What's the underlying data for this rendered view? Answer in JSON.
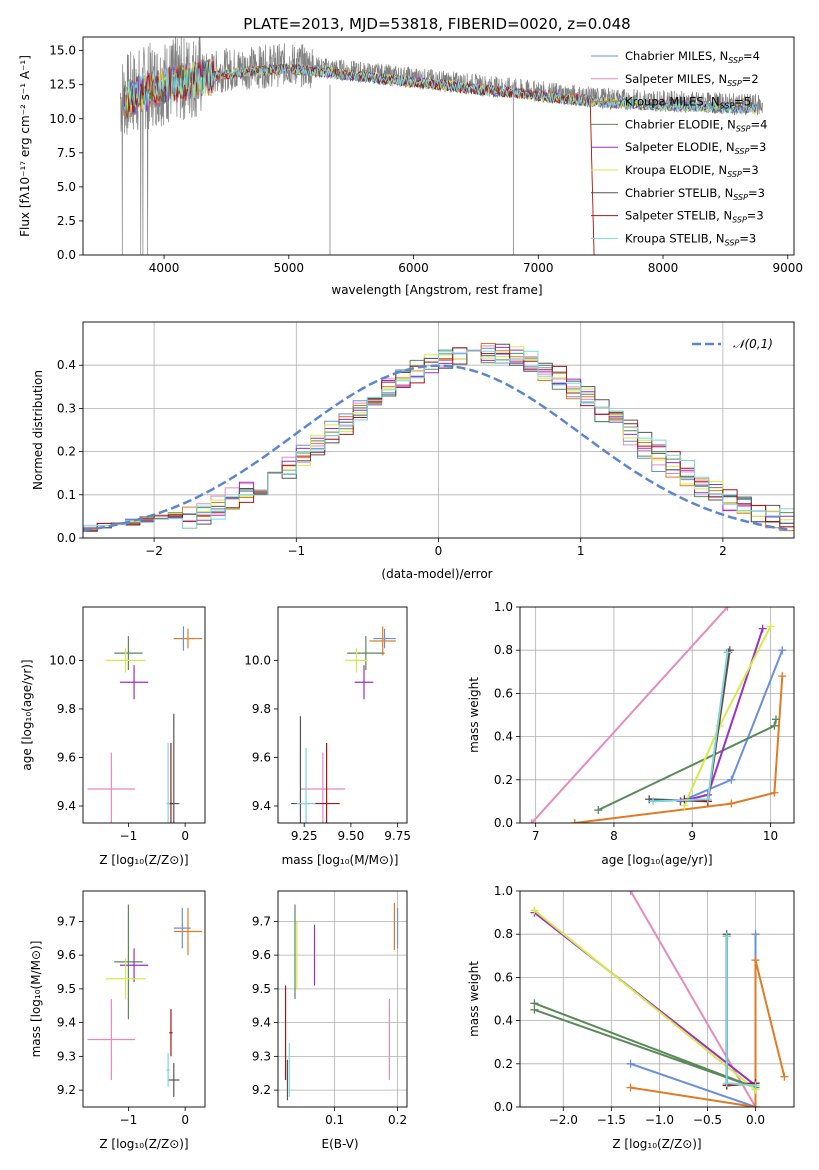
{
  "figure_title": "PLATE=2013, MJD=53818, FIBERID=0020, z=0.048",
  "colors": {
    "Chabrier MILES": "#6a8fdc",
    "Salpeter MILES": "#e58bbd",
    "Kroupa MILES": "#e07b24",
    "Chabrier ELODIE": "#5a8a5a",
    "Salpeter ELODIE": "#9b2fc6",
    "Kroupa ELODIE": "#d6ea4a",
    "Chabrier STELIB": "#555555",
    "Salpeter STELIB": "#a01818",
    "Kroupa STELIB": "#78d8e0",
    "normal": "#5b86cf"
  },
  "chart_data": [
    {
      "id": "spectrum",
      "type": "line",
      "title": "PLATE=2013, MJD=53818, FIBERID=0020, z=0.048",
      "xlabel": "wavelength [Angstrom, rest frame]",
      "ylabel": "Flux [fλ10⁻¹⁷ erg cm⁻² s⁻¹ A⁻¹]",
      "xlim": [
        3350,
        9050
      ],
      "ylim": [
        0,
        16
      ],
      "xticks": [
        4000,
        5000,
        6000,
        7000,
        8000,
        9000
      ],
      "yticks": [
        0.0,
        2.5,
        5.0,
        7.5,
        10.0,
        12.5,
        15.0
      ],
      "grid": false,
      "legend_position": "upper right",
      "legend": [
        "Chabrier MILES, N_SSP=4",
        "Salpeter MILES, N_SSP=2",
        "Kroupa MILES, N_SSP=5",
        "Chabrier ELODIE, N_SSP=4",
        "Salpeter ELODIE, N_SSP=3",
        "Kroupa ELODIE, N_SSP=3",
        "Chabrier STELIB, N_SSP=3",
        "Salpeter STELIB, N_SSP=3",
        "Kroupa STELIB, N_SSP=3"
      ],
      "data_series": {
        "name": "data",
        "x_range": [
          3650,
          8800
        ],
        "continuum": [
          [
            3650,
            11.5
          ],
          [
            3900,
            12.5
          ],
          [
            4500,
            13.6
          ],
          [
            5000,
            14.0
          ],
          [
            5500,
            13.5
          ],
          [
            6000,
            13.0
          ],
          [
            6500,
            12.5
          ],
          [
            7000,
            12.0
          ],
          [
            7500,
            11.5
          ],
          [
            8000,
            11.3
          ],
          [
            8800,
            11.0
          ]
        ]
      },
      "model_end": {
        "Kroupa MILES": 7420,
        "Salpeter STELIB": 7420
      }
    },
    {
      "id": "residuals",
      "type": "line",
      "xlabel": "(data-model)/error",
      "ylabel": "Normed distribution",
      "xlim": [
        -2.5,
        2.5
      ],
      "ylim": [
        0.0,
        0.5
      ],
      "xticks": [
        -2,
        -1,
        0,
        1,
        2
      ],
      "yticks": [
        0.0,
        0.1,
        0.2,
        0.3,
        0.4
      ],
      "grid": true,
      "legend_position": "upper right",
      "legend": [
        "N(0,1)"
      ],
      "bin_width": 0.1,
      "normal_curve": {
        "mu": 0,
        "sigma": 1
      }
    },
    {
      "id": "age_vs_Z",
      "type": "scatter",
      "xlabel": "Z [log10(Z/Z⊙)]",
      "ylabel": "age [log10(age/yr)]",
      "xlim": [
        -1.8,
        0.35
      ],
      "ylim": [
        9.33,
        10.22
      ],
      "xticks": [
        -1,
        0
      ],
      "yticks": [
        9.4,
        9.6,
        9.8,
        10.0
      ],
      "grid": false,
      "points": [
        {
          "name": "Chabrier MILES",
          "x": -0.03,
          "y": 10.09,
          "xerr": 0.17,
          "yerr": 0.05
        },
        {
          "name": "Salpeter MILES",
          "x": -1.3,
          "y": 9.47,
          "xerr": 0.42,
          "yerr": 0.15
        },
        {
          "name": "Kroupa MILES",
          "x": 0.05,
          "y": 10.09,
          "xerr": 0.25,
          "yerr": 0.04
        },
        {
          "name": "Chabrier ELODIE",
          "x": -1.0,
          "y": 10.03,
          "xerr": 0.25,
          "yerr": 0.07
        },
        {
          "name": "Salpeter ELODIE",
          "x": -0.9,
          "y": 9.91,
          "xerr": 0.25,
          "yerr": 0.07
        },
        {
          "name": "Kroupa ELODIE",
          "x": -1.05,
          "y": 10.0,
          "xerr": 0.35,
          "yerr": 0.05
        },
        {
          "name": "Chabrier STELIB",
          "x": -0.2,
          "y": 9.41,
          "xerr": 0.1,
          "yerr": 0.37
        },
        {
          "name": "Salpeter STELIB",
          "x": -0.25,
          "y": 9.41,
          "xerr": 0.03,
          "yerr": 0.25
        },
        {
          "name": "Kroupa STELIB",
          "x": -0.3,
          "y": 9.41,
          "xerr": 0.03,
          "yerr": 0.25
        }
      ]
    },
    {
      "id": "age_vs_mass",
      "type": "scatter",
      "xlabel": "mass [log10(M/M⊙)]",
      "ylabel": "",
      "xlim": [
        9.11,
        9.8
      ],
      "ylim": [
        9.33,
        10.22
      ],
      "xticks": [
        9.25,
        9.5,
        9.75
      ],
      "yticks": [
        9.4,
        9.6,
        9.8,
        10.0
      ],
      "grid": false,
      "points": [
        {
          "name": "Chabrier MILES",
          "x": 9.68,
          "y": 10.09,
          "xerr": 0.06,
          "yerr": 0.04
        },
        {
          "name": "Salpeter MILES",
          "x": 9.35,
          "y": 9.47,
          "xerr": 0.12,
          "yerr": 0.15
        },
        {
          "name": "Kroupa MILES",
          "x": 9.67,
          "y": 10.08,
          "xerr": 0.07,
          "yerr": 0.06
        },
        {
          "name": "Chabrier ELODIE",
          "x": 9.58,
          "y": 10.03,
          "xerr": 0.1,
          "yerr": 0.07
        },
        {
          "name": "Salpeter ELODIE",
          "x": 9.57,
          "y": 9.91,
          "xerr": 0.05,
          "yerr": 0.07
        },
        {
          "name": "Kroupa ELODIE",
          "x": 9.53,
          "y": 10.0,
          "xerr": 0.06,
          "yerr": 0.05
        },
        {
          "name": "Chabrier STELIB",
          "x": 9.23,
          "y": 9.41,
          "xerr": 0.05,
          "yerr": 0.36
        },
        {
          "name": "Salpeter STELIB",
          "x": 9.37,
          "y": 9.41,
          "xerr": 0.07,
          "yerr": 0.25
        },
        {
          "name": "Kroupa STELIB",
          "x": 9.26,
          "y": 9.41,
          "xerr": 0.05,
          "yerr": 0.23
        }
      ]
    },
    {
      "id": "weight_vs_age",
      "type": "line",
      "xlabel": "age [log10(age/yr)]",
      "ylabel": "mass weight",
      "xlim": [
        6.8,
        10.3
      ],
      "ylim": [
        0.0,
        1.0
      ],
      "xticks": [
        7,
        8,
        9,
        10
      ],
      "yticks": [
        0.0,
        0.2,
        0.4,
        0.6,
        0.8,
        1.0
      ],
      "grid": true,
      "series": [
        {
          "name": "Salpeter MILES",
          "x": [
            6.95,
            9.45
          ],
          "y": [
            0.0,
            1.0
          ]
        },
        {
          "name": "Chabrier MILES",
          "x": [
            8.85,
            9.5,
            10.15
          ],
          "y": [
            0.1,
            0.2,
            0.8
          ]
        },
        {
          "name": "Kroupa MILES",
          "x": [
            7.5,
            9.5,
            10.05,
            10.15
          ],
          "y": [
            0.0,
            0.09,
            0.14,
            0.68
          ]
        },
        {
          "name": "Chabrier ELODIE",
          "x": [
            7.8,
            10.05,
            10.07
          ],
          "y": [
            0.06,
            0.45,
            0.48
          ]
        },
        {
          "name": "Salpeter ELODIE",
          "x": [
            8.85,
            9.2,
            9.9
          ],
          "y": [
            0.1,
            0.13,
            0.9
          ]
        },
        {
          "name": "Kroupa ELODIE",
          "x": [
            8.9,
            9.35,
            10.0
          ],
          "y": [
            0.08,
            0.45,
            0.91
          ]
        },
        {
          "name": "Chabrier STELIB",
          "x": [
            8.45,
            9.2,
            9.48
          ],
          "y": [
            0.11,
            0.1,
            0.8
          ]
        },
        {
          "name": "Salpeter STELIB",
          "x": [
            8.9,
            9.2,
            9.46
          ],
          "y": [
            0.11,
            0.1,
            0.79
          ]
        },
        {
          "name": "Kroupa STELIB",
          "x": [
            8.5,
            9.2,
            9.45
          ],
          "y": [
            0.1,
            0.11,
            0.79
          ]
        }
      ]
    },
    {
      "id": "mass_vs_Z",
      "type": "scatter",
      "xlabel": "Z [log10(Z/Z⊙)]",
      "ylabel": "mass [log10(M/M⊙)]",
      "xlim": [
        -1.8,
        0.35
      ],
      "ylim": [
        9.15,
        9.79
      ],
      "xticks": [
        -1,
        0
      ],
      "yticks": [
        9.2,
        9.3,
        9.4,
        9.5,
        9.6,
        9.7
      ],
      "grid": false,
      "points": [
        {
          "name": "Chabrier MILES",
          "x": -0.05,
          "y": 9.68,
          "xerr": 0.15,
          "yerr": 0.06
        },
        {
          "name": "Salpeter MILES",
          "x": -1.3,
          "y": 9.35,
          "xerr": 0.42,
          "yerr": 0.12
        },
        {
          "name": "Kroupa MILES",
          "x": 0.05,
          "y": 9.67,
          "xerr": 0.25,
          "yerr": 0.07
        },
        {
          "name": "Chabrier ELODIE",
          "x": -1.0,
          "y": 9.58,
          "xerr": 0.25,
          "yerr": 0.17
        },
        {
          "name": "Salpeter ELODIE",
          "x": -0.9,
          "y": 9.57,
          "xerr": 0.25,
          "yerr": 0.05
        },
        {
          "name": "Kroupa ELODIE",
          "x": -1.05,
          "y": 9.53,
          "xerr": 0.35,
          "yerr": 0.06
        },
        {
          "name": "Chabrier STELIB",
          "x": -0.2,
          "y": 9.23,
          "xerr": 0.1,
          "yerr": 0.05
        },
        {
          "name": "Salpeter STELIB",
          "x": -0.25,
          "y": 9.37,
          "xerr": 0.03,
          "yerr": 0.07
        },
        {
          "name": "Kroupa STELIB",
          "x": -0.3,
          "y": 9.26,
          "xerr": 0.03,
          "yerr": 0.05
        }
      ]
    },
    {
      "id": "mass_vs_ebv",
      "type": "scatter",
      "xlabel": "E(B-V)",
      "ylabel": "",
      "xlim": [
        0.01,
        0.215
      ],
      "ylim": [
        9.15,
        9.79
      ],
      "xticks": [
        0.1,
        0.2
      ],
      "yticks": [
        9.2,
        9.3,
        9.4,
        9.5,
        9.6,
        9.7
      ],
      "grid": true,
      "points": [
        {
          "name": "Chabrier MILES",
          "x": 0.2,
          "y": 9.68,
          "yerr": 0.06
        },
        {
          "name": "Salpeter MILES",
          "x": 0.187,
          "y": 9.35,
          "yerr": 0.12
        },
        {
          "name": "Kroupa MILES",
          "x": 0.195,
          "y": 9.685,
          "yerr": 0.07
        },
        {
          "name": "Chabrier ELODIE",
          "x": 0.037,
          "y": 9.61,
          "yerr": 0.14
        },
        {
          "name": "Salpeter ELODIE",
          "x": 0.068,
          "y": 9.6,
          "yerr": 0.09
        },
        {
          "name": "Kroupa ELODIE",
          "x": 0.04,
          "y": 9.6,
          "yerr": 0.1
        },
        {
          "name": "Chabrier STELIB",
          "x": 0.025,
          "y": 9.23,
          "yerr": 0.06
        },
        {
          "name": "Salpeter STELIB",
          "x": 0.022,
          "y": 9.37,
          "yerr": 0.14
        },
        {
          "name": "Kroupa STELIB",
          "x": 0.028,
          "y": 9.26,
          "yerr": 0.08
        }
      ]
    },
    {
      "id": "weight_vs_Z",
      "type": "line",
      "xlabel": "Z [log10(Z/Z⊙)]",
      "ylabel": "mass weight",
      "xlim": [
        -2.45,
        0.4
      ],
      "ylim": [
        0.0,
        1.0
      ],
      "xticks": [
        -2.0,
        -1.5,
        -1.0,
        -0.5,
        0.0
      ],
      "yticks": [
        0.0,
        0.2,
        0.4,
        0.6,
        0.8,
        1.0
      ],
      "grid": true,
      "series": [
        {
          "name": "Salpeter MILES",
          "x": [
            -1.3,
            0.0
          ],
          "y": [
            1.0,
            0.0
          ]
        },
        {
          "name": "Chabrier MILES",
          "x": [
            -1.3,
            0.0,
            0.0
          ],
          "y": [
            0.2,
            0.0,
            0.8
          ]
        },
        {
          "name": "Kroupa MILES",
          "x": [
            -1.3,
            0.0,
            0.0,
            0.3
          ],
          "y": [
            0.09,
            0.0,
            0.68,
            0.14
          ]
        },
        {
          "name": "Chabrier ELODIE",
          "x": [
            -2.3,
            0.0,
            -2.3
          ],
          "y": [
            0.48,
            0.09,
            0.45
          ]
        },
        {
          "name": "Salpeter ELODIE",
          "x": [
            -2.3,
            0.0
          ],
          "y": [
            0.9,
            0.1
          ]
        },
        {
          "name": "Kroupa ELODIE",
          "x": [
            -2.3,
            0.0
          ],
          "y": [
            0.91,
            0.08
          ]
        },
        {
          "name": "Chabrier STELIB",
          "x": [
            -0.3,
            -0.3,
            0.0,
            -0.3
          ],
          "y": [
            0.8,
            0.1,
            0.11,
            0.1
          ]
        },
        {
          "name": "Salpeter STELIB",
          "x": [
            -0.3,
            -0.3,
            0.0
          ],
          "y": [
            0.79,
            0.1,
            0.11
          ]
        },
        {
          "name": "Kroupa STELIB",
          "x": [
            -0.3,
            -0.3,
            0.0
          ],
          "y": [
            0.79,
            0.11,
            0.1
          ]
        }
      ]
    }
  ]
}
